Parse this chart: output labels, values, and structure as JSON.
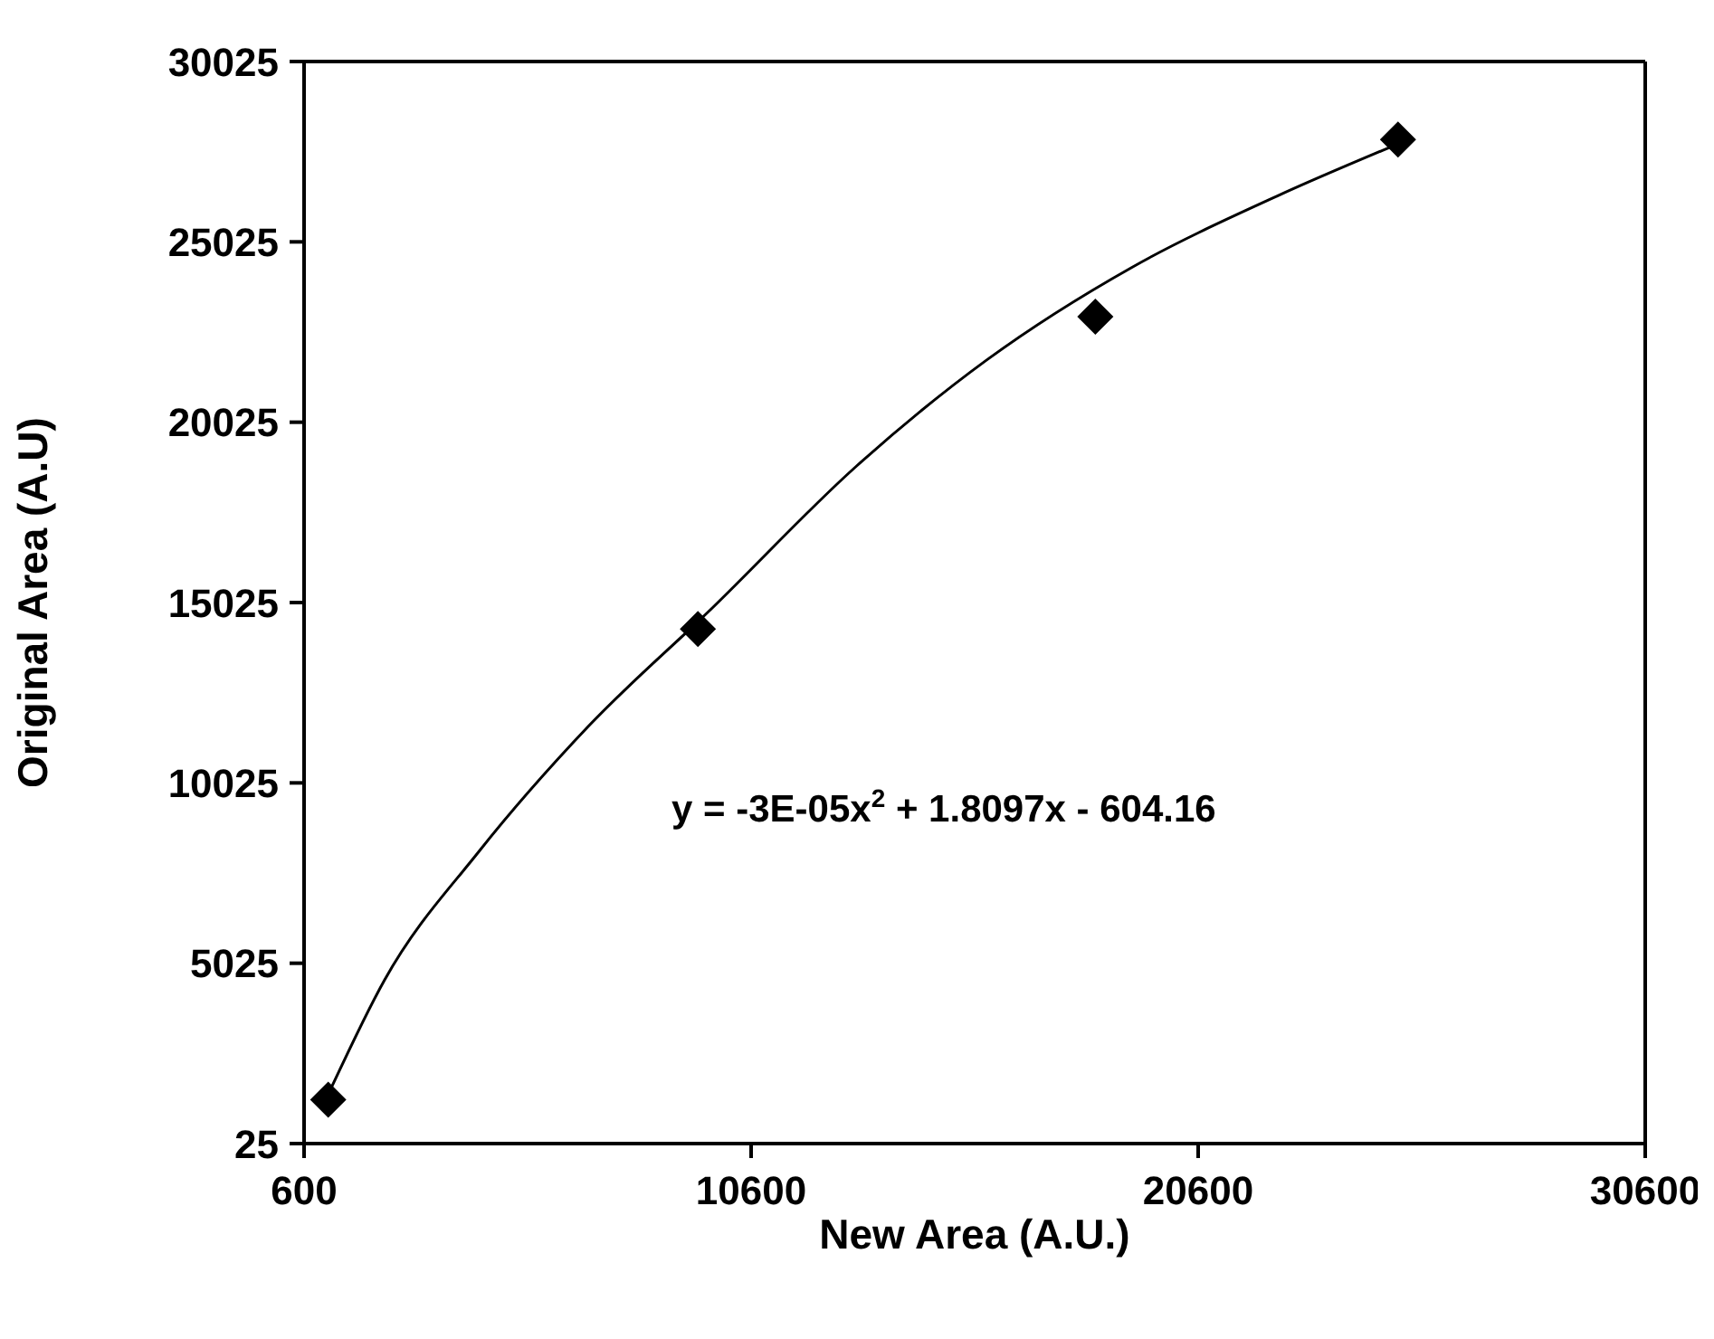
{
  "chart_data": {
    "type": "scatter",
    "xlabel": "New Area (A.U.)",
    "ylabel": "Original Area (A.U)",
    "xlim": [
      600,
      30600
    ],
    "xticks": [
      600,
      10600,
      20600,
      30600
    ],
    "ylim": [
      25,
      30025
    ],
    "yticks": [
      25,
      5025,
      10025,
      15025,
      20025,
      25025,
      30025
    ],
    "marker": "diamond",
    "series": [
      {
        "color": "#000000",
        "x": [
          1140,
          9410,
          18300,
          25070
        ],
        "values": [
          1240,
          14290,
          22950,
          27860
        ]
      },
      {
        "type": "line",
        "color": "#000000",
        "marker": "none",
        "line_style": "solid",
        "x": [
          1220,
          2400,
          4510,
          6950,
          9710,
          12950,
          15870,
          19120,
          22360,
          25070
        ],
        "values": [
          1600,
          4560,
          8120,
          11580,
          14850,
          18800,
          21750,
          24320,
          26290,
          27740
        ]
      }
    ],
    "annotations": [
      "y = -3E-05x$^{2}$ + 1.8097x - 604.16"
    ]
  }
}
